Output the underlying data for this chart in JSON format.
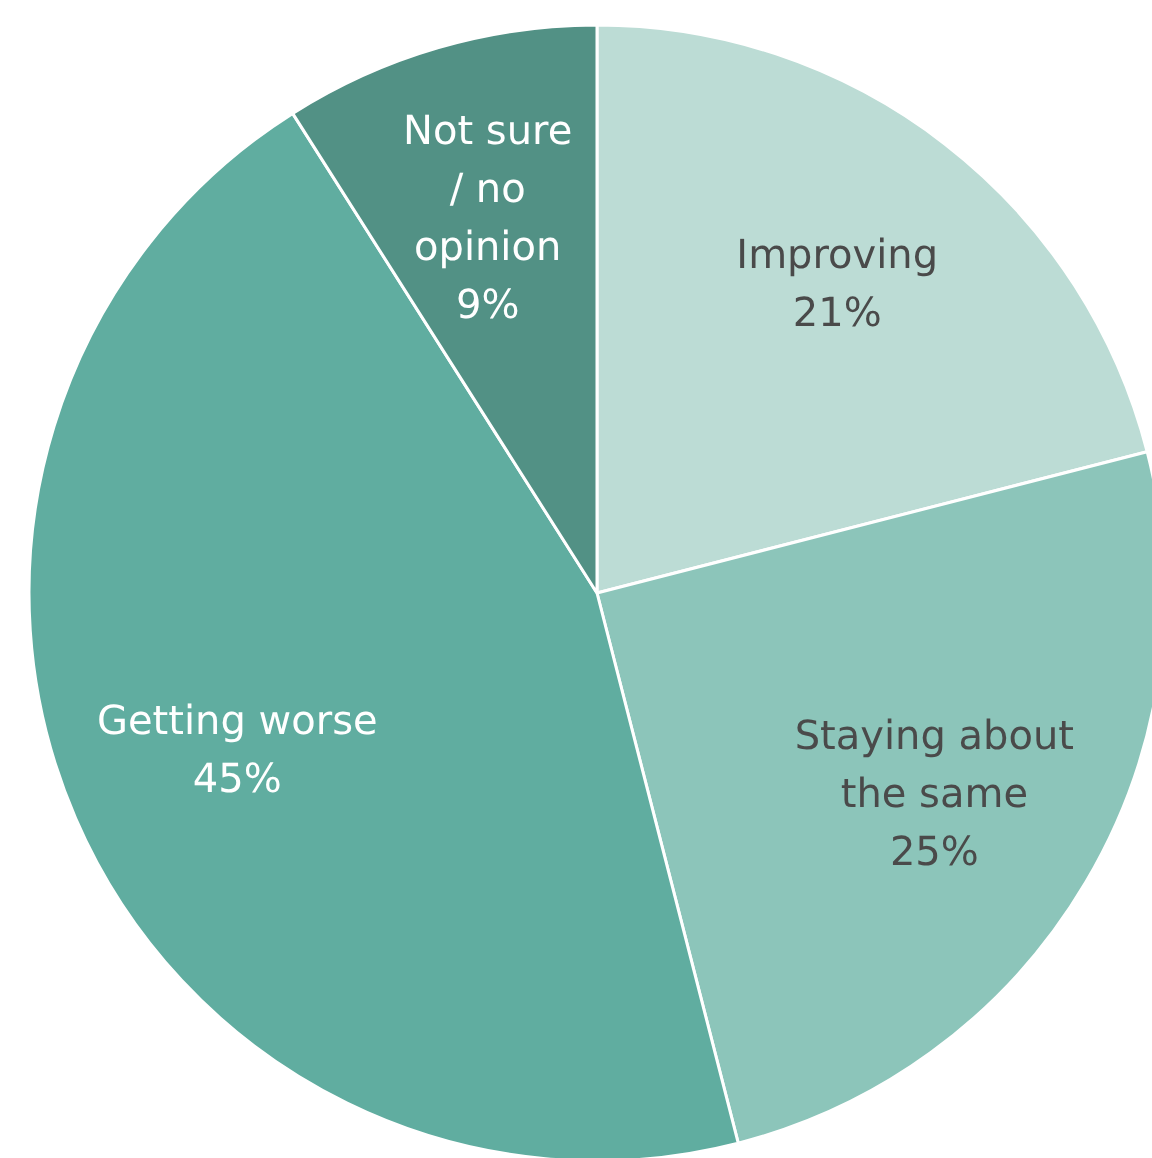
{
  "chart_data": {
    "type": "pie",
    "categories": [
      "Improving",
      "Staying about\nthe same",
      "Getting worse",
      "Not sure\n/ no\nopinion"
    ],
    "values": [
      21,
      25,
      45,
      9
    ],
    "value_labels": [
      "21%",
      "25%",
      "45%",
      "9%"
    ],
    "colors": [
      "#bcdcd5",
      "#8cc5ba",
      "#60ada0",
      "#529185"
    ]
  }
}
